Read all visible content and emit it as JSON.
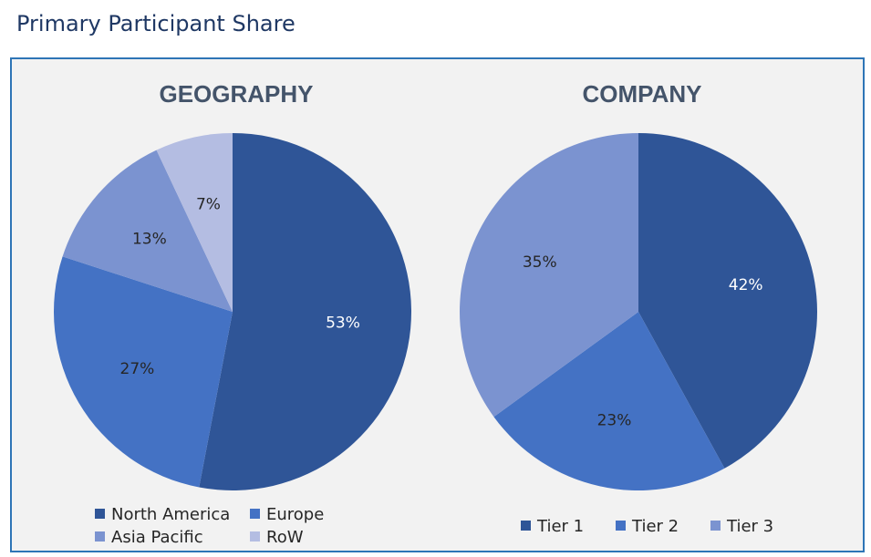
{
  "page_title": "Primary Participant Share",
  "chart_data": [
    {
      "type": "pie",
      "title": "GEOGRAPHY",
      "categories": [
        "North America",
        "Europe",
        "Asia Pacific",
        "RoW"
      ],
      "values": [
        53,
        27,
        13,
        7
      ],
      "labels": [
        "53%",
        "27%",
        "13%",
        "7%"
      ],
      "colors": [
        "#2f5597",
        "#4472c4",
        "#7b93d0",
        "#b4bde2"
      ],
      "label_colors": [
        "#ffffff",
        "#262626",
        "#262626",
        "#262626"
      ],
      "legend_position": "bottom"
    },
    {
      "type": "pie",
      "title": "COMPANY",
      "categories": [
        "Tier 1",
        "Tier 2",
        "Tier 3"
      ],
      "values": [
        42,
        23,
        35
      ],
      "labels": [
        "42%",
        "23%",
        "35%"
      ],
      "colors": [
        "#2f5597",
        "#4472c4",
        "#7b93d0"
      ],
      "label_colors": [
        "#ffffff",
        "#262626",
        "#262626"
      ],
      "legend_position": "bottom"
    }
  ]
}
